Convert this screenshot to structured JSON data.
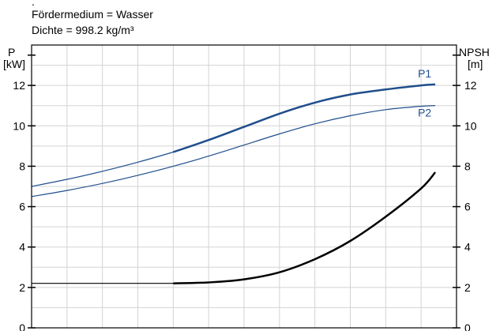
{
  "header": {
    "dot": ".",
    "medium": "Fördermedium = Wasser",
    "density": "Dichte = 998.2 kg/m³"
  },
  "axes": {
    "left_label_1": "P",
    "left_label_2": "[kW]",
    "right_label_1": "NPSH",
    "right_label_2": "[m]"
  },
  "chart_data": {
    "type": "line",
    "x_range": [
      0,
      12
    ],
    "left_axis": {
      "range": [
        0,
        14
      ],
      "ticks": [
        0,
        2,
        4,
        6,
        8,
        10,
        12
      ]
    },
    "right_axis": {
      "range": [
        0,
        14
      ],
      "ticks": [
        0,
        2,
        4,
        6,
        8,
        10,
        12
      ]
    },
    "grid": true,
    "series": [
      {
        "name": "P1",
        "axis": "left",
        "color": "#1f4e8c",
        "x": [
          0,
          1,
          2,
          3,
          4,
          5,
          6,
          7,
          8,
          9,
          10,
          11,
          11.4
        ],
        "y": [
          7.0,
          7.35,
          7.75,
          8.2,
          8.7,
          9.3,
          9.95,
          10.6,
          11.15,
          11.55,
          11.8,
          12.0,
          12.05
        ],
        "solid_from_x": 4
      },
      {
        "name": "P2",
        "axis": "left",
        "color": "#1f4e8c",
        "x": [
          0,
          1,
          2,
          3,
          4,
          5,
          6,
          7,
          8,
          9,
          10,
          11,
          11.4
        ],
        "y": [
          6.5,
          6.8,
          7.15,
          7.55,
          8.0,
          8.5,
          9.05,
          9.6,
          10.1,
          10.5,
          10.8,
          10.97,
          11.0
        ]
      },
      {
        "name": "",
        "axis": "right",
        "color": "#000000",
        "x": [
          0,
          4,
          5,
          6,
          7,
          8,
          9,
          10,
          11,
          11.4
        ],
        "y": [
          2.2,
          2.2,
          2.25,
          2.4,
          2.75,
          3.4,
          4.3,
          5.5,
          6.9,
          7.7
        ],
        "solid_from_x": 4
      }
    ]
  }
}
